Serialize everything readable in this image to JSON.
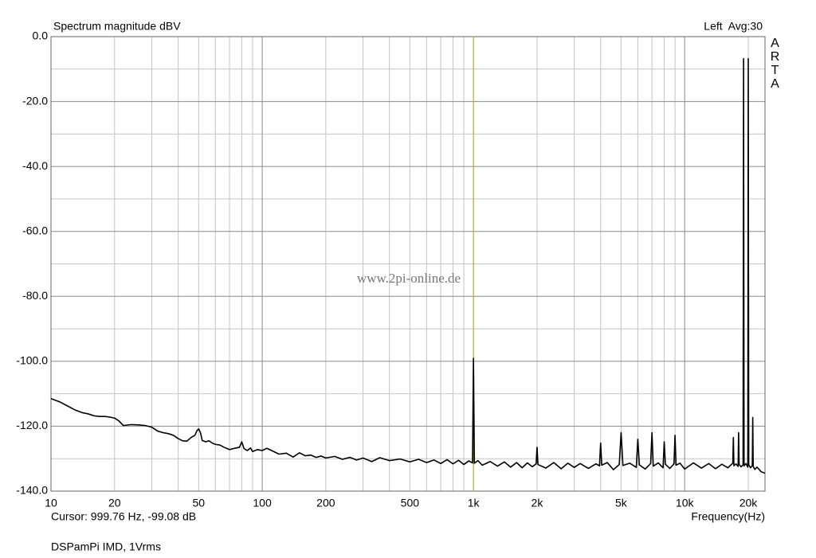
{
  "chart_data": {
    "type": "line",
    "title": "Spectrum magnitude dBV",
    "channel_label": "Left  Avg:30",
    "brand": "ARTA",
    "watermark": "www.2pi-online.de",
    "cursor": {
      "label": "Cursor: 999.76 Hz, -99.08 dB",
      "x": 999.76,
      "color": "#b8b800"
    },
    "x_label": "Frequency(Hz)",
    "footer": "DSPamPi IMD, 1Vrms",
    "log_x": true,
    "grid": true,
    "xlim": [
      10,
      24000
    ],
    "ylim": [
      -140,
      0
    ],
    "xticks": [
      10,
      20,
      50,
      100,
      200,
      500,
      {
        "value": 1000,
        "label": "1k"
      },
      {
        "value": 2000,
        "label": "2k"
      },
      {
        "value": 5000,
        "label": "5k"
      },
      {
        "value": 10000,
        "label": "10k"
      },
      {
        "value": 20000,
        "label": "20k"
      }
    ],
    "x_minor_ticks": [
      30,
      40,
      60,
      70,
      80,
      90,
      300,
      400,
      600,
      700,
      800,
      900,
      3000,
      4000,
      6000,
      7000,
      8000,
      9000
    ],
    "yticks": [
      {
        "value": 0,
        "label": "0.0"
      },
      {
        "value": -20,
        "label": "-20.0"
      },
      {
        "value": -40,
        "label": "-40.0"
      },
      {
        "value": -60,
        "label": "-60.0"
      },
      {
        "value": -80,
        "label": "-80.0"
      },
      {
        "value": -100,
        "label": "-100.0"
      },
      {
        "value": -120,
        "label": "-120.0"
      },
      {
        "value": -140,
        "label": "-140.0"
      }
    ],
    "y_minor_ticks": [
      -10,
      -30,
      -50,
      -70,
      -90,
      -110,
      -130
    ],
    "x": [
      10,
      11,
      12,
      13,
      14,
      15,
      16,
      17,
      18,
      19,
      20,
      21,
      22,
      24,
      26,
      28,
      30,
      32,
      34,
      36,
      38,
      40,
      42,
      44,
      46,
      48,
      49,
      50,
      51,
      52,
      54,
      56,
      58,
      60,
      63,
      66,
      70,
      74,
      78,
      80,
      82,
      85,
      88,
      90,
      95,
      100,
      105,
      110,
      120,
      130,
      140,
      150,
      160,
      170,
      180,
      190,
      200,
      220,
      240,
      260,
      280,
      300,
      330,
      360,
      400,
      450,
      500,
      550,
      600,
      650,
      700,
      750,
      800,
      850,
      900,
      950,
      990,
      1000,
      1010,
      1050,
      1100,
      1200,
      1300,
      1400,
      1500,
      1600,
      1700,
      1800,
      1900,
      1980,
      2000,
      2020,
      2200,
      2400,
      2600,
      2800,
      3000,
      3200,
      3500,
      3800,
      3950,
      4000,
      4050,
      4300,
      4600,
      4900,
      5000,
      5100,
      5500,
      5900,
      6000,
      6100,
      6500,
      6900,
      7000,
      7100,
      7500,
      7900,
      8000,
      8100,
      8500,
      8900,
      9000,
      9100,
      9500,
      10000,
      11000,
      12000,
      13000,
      14000,
      15000,
      16000,
      16900,
      17000,
      17100,
      17500,
      17900,
      18000,
      18100,
      18500,
      18900,
      19000,
      19100,
      19500,
      19900,
      20000,
      20100,
      20500,
      20900,
      21000,
      21100,
      21500,
      22000,
      23000,
      24000
    ],
    "series": [
      {
        "color": "#000000",
        "values": [
          -111.5,
          -112.5,
          -113.8,
          -115,
          -115.8,
          -116.2,
          -116.8,
          -117,
          -117,
          -117.2,
          -117.5,
          -118.4,
          -119.8,
          -119.5,
          -119.6,
          -119.8,
          -120.3,
          -121.5,
          -122,
          -122.3,
          -122.8,
          -123.8,
          -124.5,
          -124.6,
          -123.5,
          -122.8,
          -121.5,
          -120.8,
          -122,
          -124.4,
          -124.8,
          -124.5,
          -125.2,
          -125.6,
          -125.8,
          -126.5,
          -127.2,
          -126.8,
          -126.5,
          -124.8,
          -126.9,
          -127.5,
          -126.7,
          -127.8,
          -127.2,
          -127.5,
          -126.8,
          -127.4,
          -128.6,
          -128.3,
          -129.5,
          -128.2,
          -129.1,
          -128.9,
          -129.6,
          -129.2,
          -129.8,
          -129.3,
          -130.2,
          -129.6,
          -130.4,
          -129.8,
          -130.9,
          -129.7,
          -130.6,
          -130.1,
          -131,
          -130.2,
          -131.2,
          -130.4,
          -131.5,
          -130.3,
          -131.6,
          -130.5,
          -131.8,
          -130.7,
          -131.3,
          -99.08,
          -131.4,
          -130.6,
          -132,
          -130.9,
          -132.3,
          -131,
          -132.6,
          -131.2,
          -132.8,
          -131.3,
          -132.5,
          -131.6,
          -126.5,
          -131.8,
          -132.9,
          -131.2,
          -133.1,
          -131.4,
          -132.7,
          -131.5,
          -133,
          -131.6,
          -132.2,
          -125.2,
          -132,
          -131.2,
          -133.4,
          -131.8,
          -122,
          -132.1,
          -131.4,
          -132.7,
          -124,
          -131.9,
          -133.2,
          -131.5,
          -122,
          -132.3,
          -131.3,
          -132.8,
          -124.8,
          -131.7,
          -133,
          -131.6,
          -122.8,
          -132,
          -131.4,
          -133.2,
          -131.3,
          -132.9,
          -131.5,
          -133.1,
          -131.7,
          -132.8,
          -131.4,
          -123.5,
          -132.2,
          -131.6,
          -132.4,
          -122,
          -131.8,
          -132.5,
          -131.9,
          -6.8,
          -132.2,
          -131.5,
          -132.6,
          -6.8,
          -131.9,
          -132.8,
          -132.1,
          -117.3,
          -132.4,
          -133.3,
          -132.6,
          -134,
          -134.5
        ]
      }
    ]
  }
}
